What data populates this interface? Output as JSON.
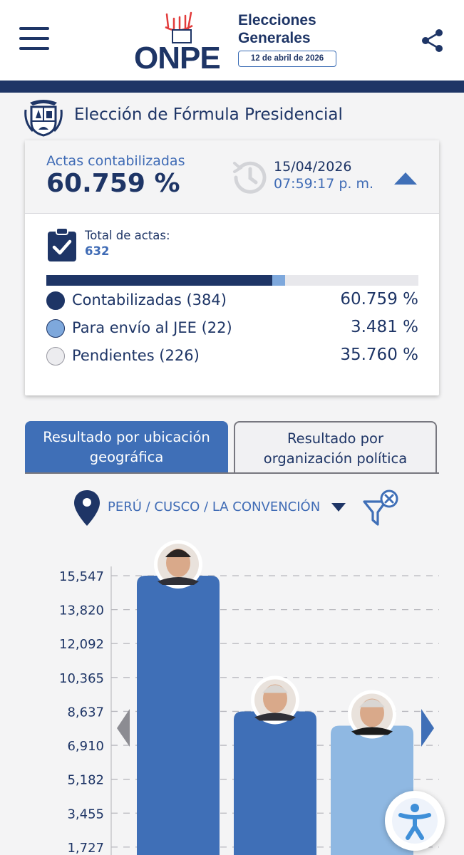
{
  "header": {
    "logo_text": "ONPE",
    "title_line1": "Elecciones",
    "title_line2": "Generales",
    "election_date": "12 de abril de 2026",
    "icons": {
      "menu": "hamburger-menu-icon",
      "share": "share-icon",
      "logo": "onpe-logo-hand"
    }
  },
  "section": {
    "title": "Elección de Fórmula Presidencial",
    "crest_icon": "peru-coat-of-arms"
  },
  "summary": {
    "actas_label": "Actas contabilizadas",
    "actas_value": "60.759 %",
    "update_date": "15/04/2026",
    "update_time": "07:59:17 p. m.",
    "total_label": "Total de actas:",
    "total_value": "632",
    "progress": [
      {
        "name": "Contabilizadas",
        "fraction": 0.60759,
        "color": "#1e3566"
      },
      {
        "name": "Para envío al JEE",
        "fraction": 0.03481,
        "color": "#7ea8dc"
      },
      {
        "name": "Pendientes",
        "fraction": 0.3576,
        "color": "#e8e8ec"
      }
    ],
    "legend": [
      {
        "label": "Contabilizadas (384)",
        "pct": "60.759 %",
        "color": "#1e3566"
      },
      {
        "label": "Para envío al JEE (22)",
        "pct": "3.481 %",
        "color": "#7ea8dc"
      },
      {
        "label": "Pendientes (226)",
        "pct": "35.760 %",
        "color": "#ececef"
      }
    ]
  },
  "tabs": {
    "active_line1": "Resultado por ubicación",
    "active_line2": "geográfica",
    "inactive_line1": "Resultado por",
    "inactive_line2": "organización política"
  },
  "location": {
    "text": "PERÚ / CUSCO / LA CONVENCIÓN",
    "pin_icon": "location-pin-icon",
    "filter_icon": "filter-clear-icon"
  },
  "chart_data": {
    "type": "bar",
    "yticks": [
      "15,547",
      "13,820",
      "12,092",
      "10,365",
      "8,637",
      "6,910",
      "5,182",
      "3,455",
      "1,727"
    ],
    "ytick_values": [
      15547,
      13820,
      12092,
      10365,
      8637,
      6910,
      5182,
      3455,
      1727
    ],
    "values": [
      15547,
      8637,
      7910
    ],
    "colors": [
      "#3f6fb7",
      "#3f6fb7",
      "#8fb8e2"
    ],
    "grid": true
  }
}
